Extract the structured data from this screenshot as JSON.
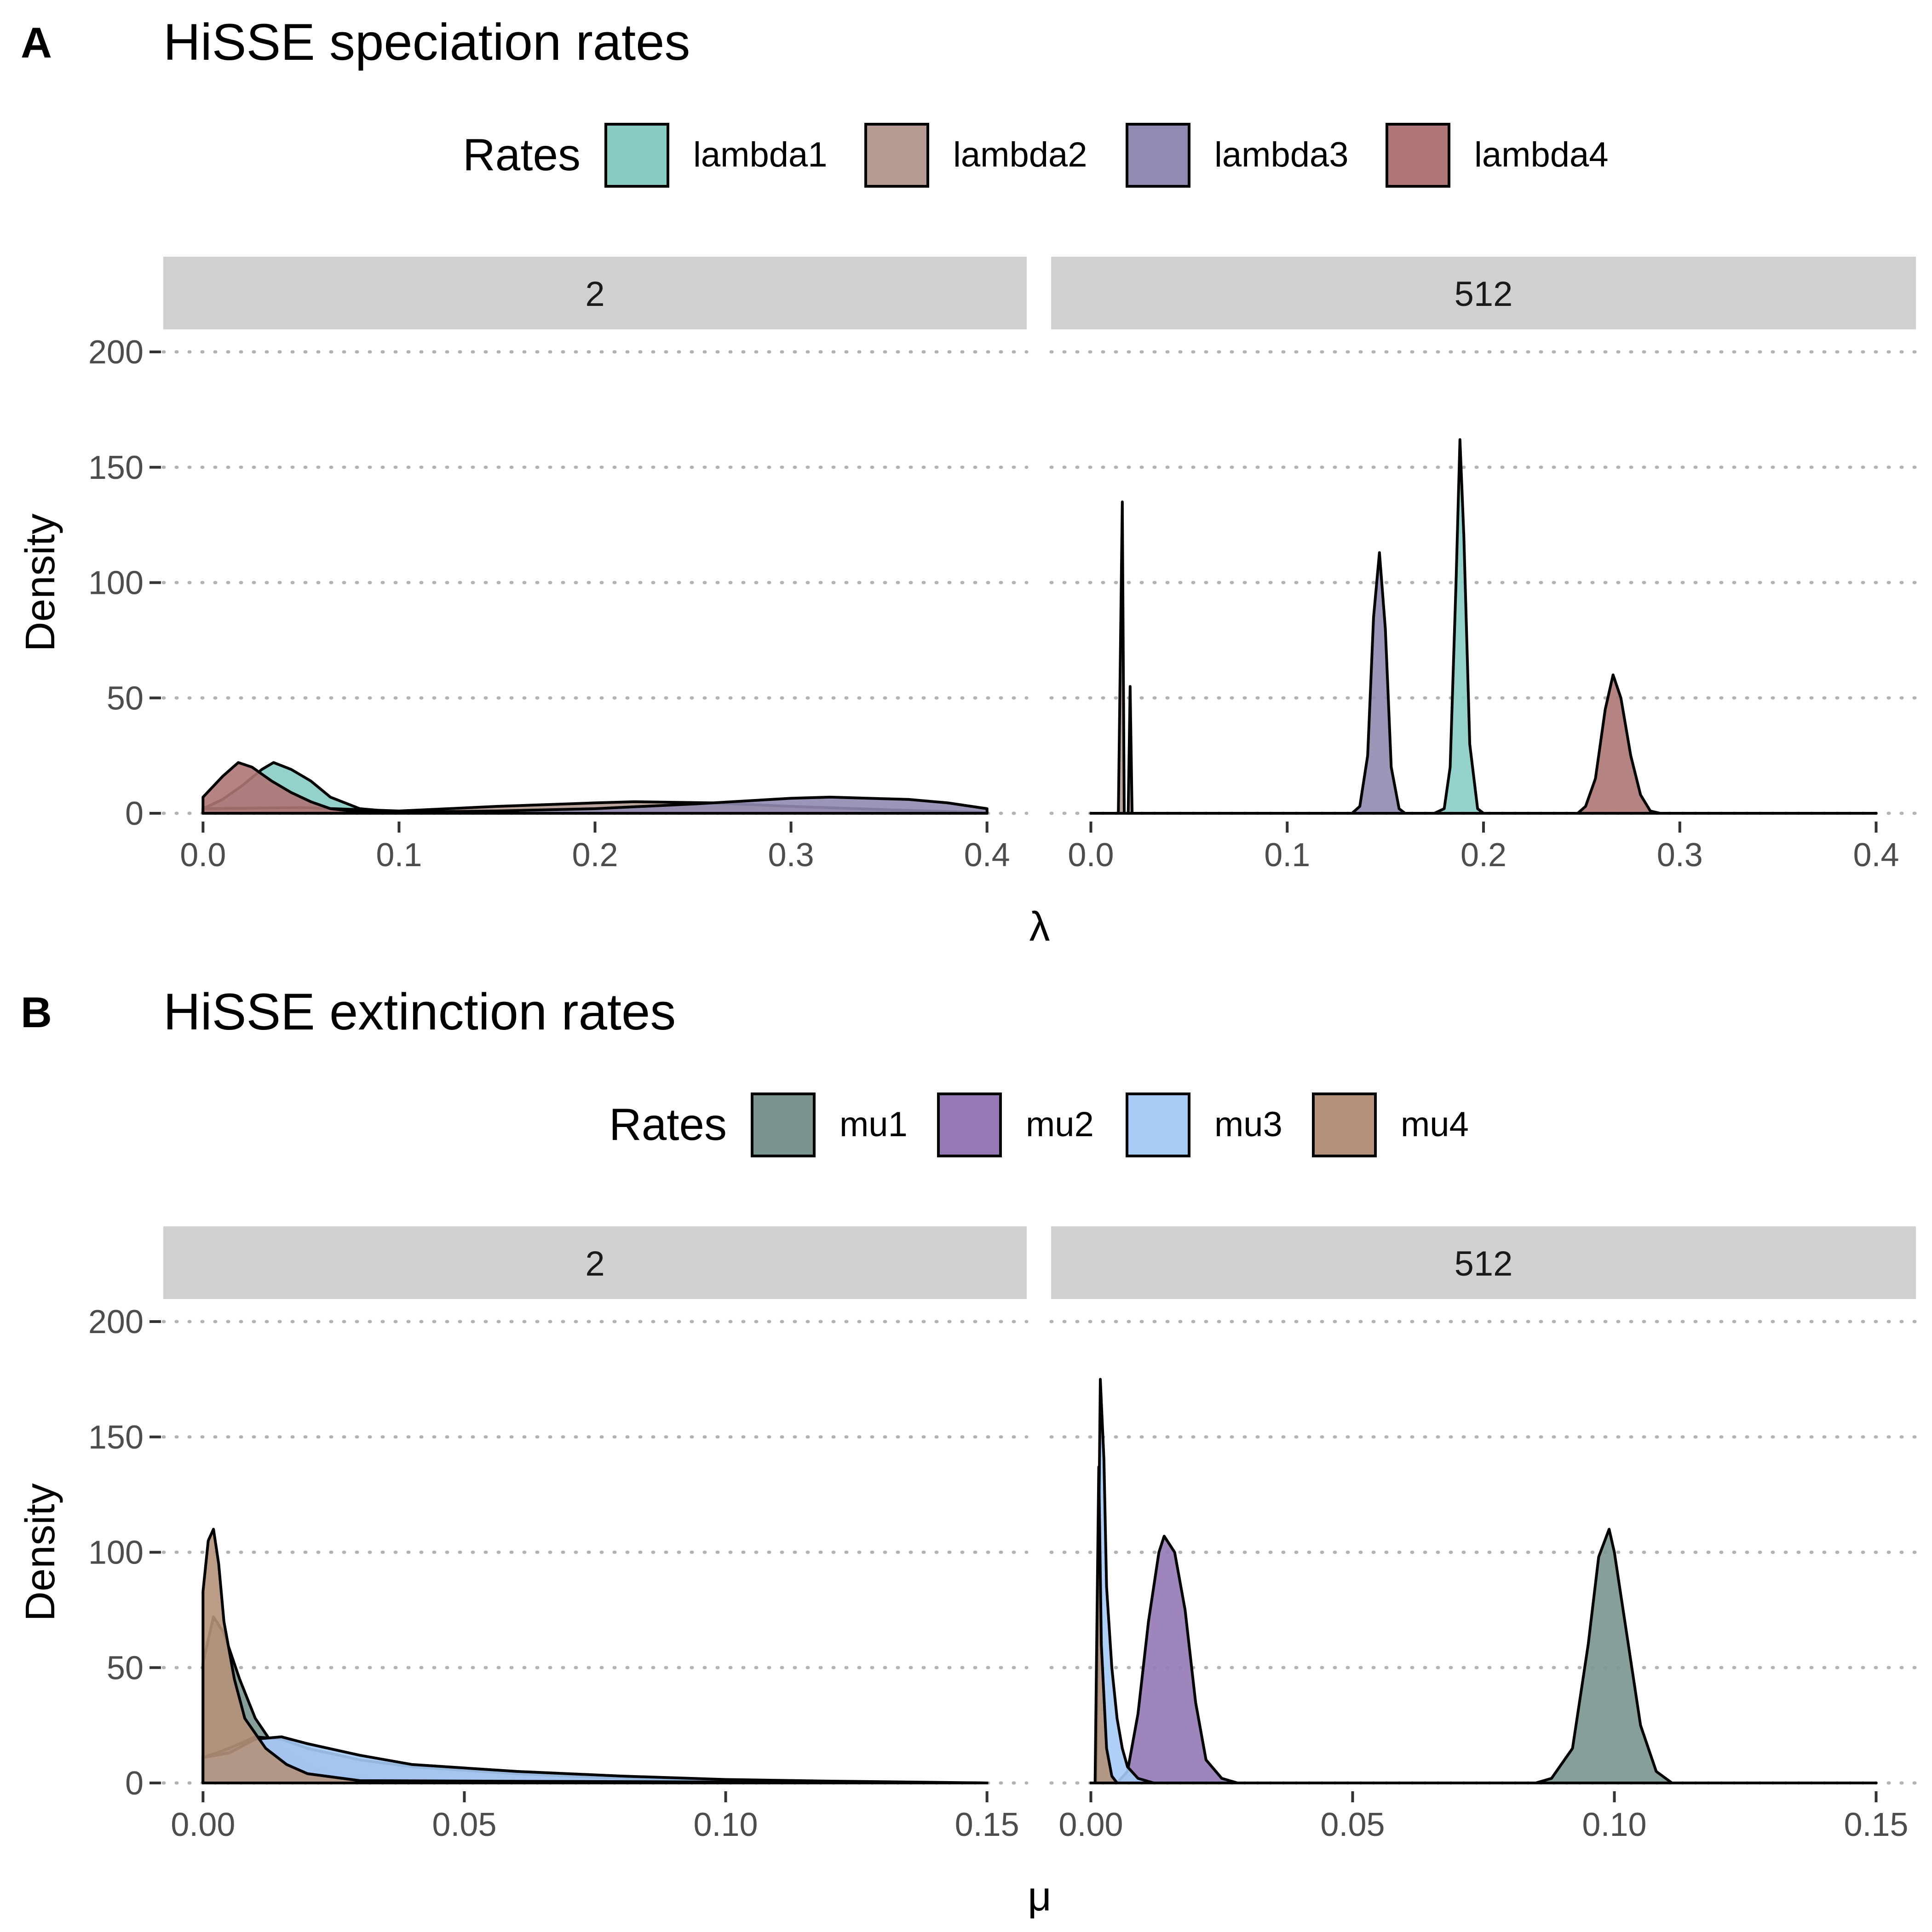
{
  "chart_data": [
    {
      "type": "area",
      "panel_letter": "A",
      "title": "HiSSE speciation rates",
      "xlabel": "λ",
      "ylabel": "Density",
      "legend": {
        "title": "Rates",
        "position": "top"
      },
      "facets": [
        "2",
        "512"
      ],
      "xlim": [
        0,
        0.4
      ],
      "ylim": [
        0,
        200
      ],
      "xticks": [
        0.0,
        0.1,
        0.2,
        0.3,
        0.4
      ],
      "xtick_labels": [
        "0.0",
        "0.1",
        "0.2",
        "0.3",
        "0.4"
      ],
      "yticks": [
        0,
        50,
        100,
        150,
        200
      ],
      "ytick_labels": [
        "0",
        "50",
        "100",
        "150",
        "200"
      ],
      "grid": "horizontal dotted",
      "series": [
        {
          "name": "lambda1",
          "color": "#88CCC4",
          "facets": {
            "2": [
              [
                0.0,
                2
              ],
              [
                0.01,
                6
              ],
              [
                0.02,
                12
              ],
              [
                0.03,
                19
              ],
              [
                0.036,
                22
              ],
              [
                0.045,
                19
              ],
              [
                0.055,
                14
              ],
              [
                0.065,
                7
              ],
              [
                0.08,
                2
              ],
              [
                0.1,
                0.5
              ],
              [
                0.15,
                0
              ]
            ],
            "512": [
              [
                0.0,
                0
              ],
              [
                0.175,
                0
              ],
              [
                0.18,
                2
              ],
              [
                0.183,
                20
              ],
              [
                0.186,
                100
              ],
              [
                0.188,
                162
              ],
              [
                0.19,
                120
              ],
              [
                0.193,
                30
              ],
              [
                0.197,
                2
              ],
              [
                0.2,
                0
              ],
              [
                0.4,
                0
              ]
            ]
          }
        },
        {
          "name": "lambda2",
          "color": "#B49A90",
          "facets": {
            "2": [
              [
                0.0,
                2
              ],
              [
                0.05,
                2.5
              ],
              [
                0.1,
                1
              ],
              [
                0.15,
                3
              ],
              [
                0.2,
                4.5
              ],
              [
                0.22,
                5
              ],
              [
                0.26,
                4.5
              ],
              [
                0.3,
                3
              ],
              [
                0.35,
                1.5
              ],
              [
                0.4,
                0.3
              ]
            ],
            "512": [
              [
                0.0,
                0
              ],
              [
                0.014,
                0
              ],
              [
                0.016,
                135
              ],
              [
                0.017,
                0
              ],
              [
                0.019,
                0
              ],
              [
                0.02,
                55
              ],
              [
                0.021,
                0
              ],
              [
                0.4,
                0
              ]
            ]
          }
        },
        {
          "name": "lambda3",
          "color": "#928AB0",
          "facets": {
            "2": [
              [
                0.0,
                0
              ],
              [
                0.1,
                0.5
              ],
              [
                0.15,
                1
              ],
              [
                0.2,
                2
              ],
              [
                0.25,
                4
              ],
              [
                0.3,
                6.5
              ],
              [
                0.32,
                7
              ],
              [
                0.36,
                6
              ],
              [
                0.38,
                4.5
              ],
              [
                0.4,
                2
              ]
            ],
            "512": [
              [
                0.0,
                0
              ],
              [
                0.133,
                0
              ],
              [
                0.137,
                3
              ],
              [
                0.141,
                25
              ],
              [
                0.144,
                85
              ],
              [
                0.147,
                113
              ],
              [
                0.15,
                80
              ],
              [
                0.153,
                20
              ],
              [
                0.157,
                2
              ],
              [
                0.16,
                0
              ],
              [
                0.4,
                0
              ]
            ]
          }
        },
        {
          "name": "lambda4",
          "color": "#AE7676",
          "facets": {
            "2": [
              [
                0.0,
                7
              ],
              [
                0.01,
                16
              ],
              [
                0.018,
                22
              ],
              [
                0.025,
                20
              ],
              [
                0.035,
                14
              ],
              [
                0.045,
                9
              ],
              [
                0.055,
                5
              ],
              [
                0.065,
                2
              ],
              [
                0.08,
                0.5
              ],
              [
                0.1,
                0
              ]
            ],
            "512": [
              [
                0.0,
                0
              ],
              [
                0.248,
                0
              ],
              [
                0.252,
                3
              ],
              [
                0.257,
                15
              ],
              [
                0.262,
                45
              ],
              [
                0.266,
                60
              ],
              [
                0.27,
                50
              ],
              [
                0.275,
                25
              ],
              [
                0.28,
                8
              ],
              [
                0.285,
                1
              ],
              [
                0.29,
                0
              ],
              [
                0.4,
                0
              ]
            ]
          }
        }
      ]
    },
    {
      "type": "area",
      "panel_letter": "B",
      "title": "HiSSE extinction rates",
      "xlabel": "μ",
      "ylabel": "Density",
      "legend": {
        "title": "Rates",
        "position": "top"
      },
      "facets": [
        "2",
        "512"
      ],
      "xlim": [
        0,
        0.15
      ],
      "ylim": [
        0,
        200
      ],
      "xticks": [
        0.0,
        0.05,
        0.1,
        0.15
      ],
      "xtick_labels": [
        "0.00",
        "0.05",
        "0.10",
        "0.15"
      ],
      "yticks": [
        0,
        50,
        100,
        150,
        200
      ],
      "ytick_labels": [
        "0",
        "50",
        "100",
        "150",
        "200"
      ],
      "grid": "horizontal dotted",
      "series": [
        {
          "name": "mu1",
          "color": "#7A9590",
          "facets": {
            "2": [
              [
                0.0,
                52
              ],
              [
                0.002,
                72
              ],
              [
                0.004,
                65
              ],
              [
                0.007,
                45
              ],
              [
                0.01,
                28
              ],
              [
                0.013,
                18
              ],
              [
                0.017,
                12
              ],
              [
                0.02,
                7
              ],
              [
                0.025,
                4
              ],
              [
                0.03,
                2
              ],
              [
                0.04,
                1
              ],
              [
                0.05,
                0.5
              ],
              [
                0.15,
                0
              ]
            ],
            "512": [
              [
                0.0,
                0
              ],
              [
                0.085,
                0
              ],
              [
                0.088,
                2
              ],
              [
                0.092,
                15
              ],
              [
                0.095,
                60
              ],
              [
                0.097,
                98
              ],
              [
                0.099,
                110
              ],
              [
                0.1,
                100
              ],
              [
                0.102,
                70
              ],
              [
                0.105,
                25
              ],
              [
                0.108,
                5
              ],
              [
                0.111,
                0
              ],
              [
                0.15,
                0
              ]
            ]
          }
        },
        {
          "name": "mu2",
          "color": "#9479B5",
          "facets": {
            "2": [
              [
                0.0,
                11
              ],
              [
                0.005,
                15
              ],
              [
                0.01,
                20
              ],
              [
                0.015,
                19
              ],
              [
                0.02,
                15
              ],
              [
                0.03,
                10
              ],
              [
                0.04,
                7
              ],
              [
                0.06,
                4
              ],
              [
                0.08,
                2
              ],
              [
                0.1,
                1
              ],
              [
                0.12,
                0.5
              ],
              [
                0.15,
                0
              ]
            ],
            "512": [
              [
                0.0,
                0
              ],
              [
                0.005,
                0
              ],
              [
                0.007,
                5
              ],
              [
                0.009,
                30
              ],
              [
                0.011,
                70
              ],
              [
                0.013,
                100
              ],
              [
                0.014,
                107
              ],
              [
                0.016,
                100
              ],
              [
                0.018,
                75
              ],
              [
                0.02,
                35
              ],
              [
                0.022,
                10
              ],
              [
                0.025,
                2
              ],
              [
                0.028,
                0
              ],
              [
                0.15,
                0
              ]
            ]
          }
        },
        {
          "name": "mu3",
          "color": "#A6CBF5",
          "facets": {
            "2": [
              [
                0.0,
                11
              ],
              [
                0.005,
                13
              ],
              [
                0.01,
                19
              ],
              [
                0.015,
                20
              ],
              [
                0.02,
                17
              ],
              [
                0.03,
                12
              ],
              [
                0.04,
                8
              ],
              [
                0.06,
                5
              ],
              [
                0.08,
                3
              ],
              [
                0.1,
                1.5
              ],
              [
                0.12,
                0.8
              ],
              [
                0.15,
                0
              ]
            ],
            "512": [
              [
                0.0,
                0
              ],
              [
                0.001,
                0
              ],
              [
                0.0018,
                175
              ],
              [
                0.0025,
                140
              ],
              [
                0.003,
                85
              ],
              [
                0.004,
                50
              ],
              [
                0.005,
                28
              ],
              [
                0.006,
                15
              ],
              [
                0.007,
                7
              ],
              [
                0.009,
                2
              ],
              [
                0.012,
                0
              ],
              [
                0.15,
                0
              ]
            ]
          }
        },
        {
          "name": "mu4",
          "color": "#B4917A",
          "facets": {
            "2": [
              [
                0.0,
                83
              ],
              [
                0.001,
                105
              ],
              [
                0.002,
                110
              ],
              [
                0.003,
                95
              ],
              [
                0.004,
                70
              ],
              [
                0.006,
                45
              ],
              [
                0.008,
                28
              ],
              [
                0.012,
                15
              ],
              [
                0.016,
                8
              ],
              [
                0.02,
                4
              ],
              [
                0.03,
                1
              ],
              [
                0.15,
                0
              ]
            ],
            "512": [
              [
                0.0,
                0
              ],
              [
                0.0008,
                0
              ],
              [
                0.0015,
                137
              ],
              [
                0.002,
                60
              ],
              [
                0.003,
                15
              ],
              [
                0.004,
                3
              ],
              [
                0.005,
                0
              ],
              [
                0.15,
                0
              ]
            ]
          }
        }
      ]
    }
  ]
}
